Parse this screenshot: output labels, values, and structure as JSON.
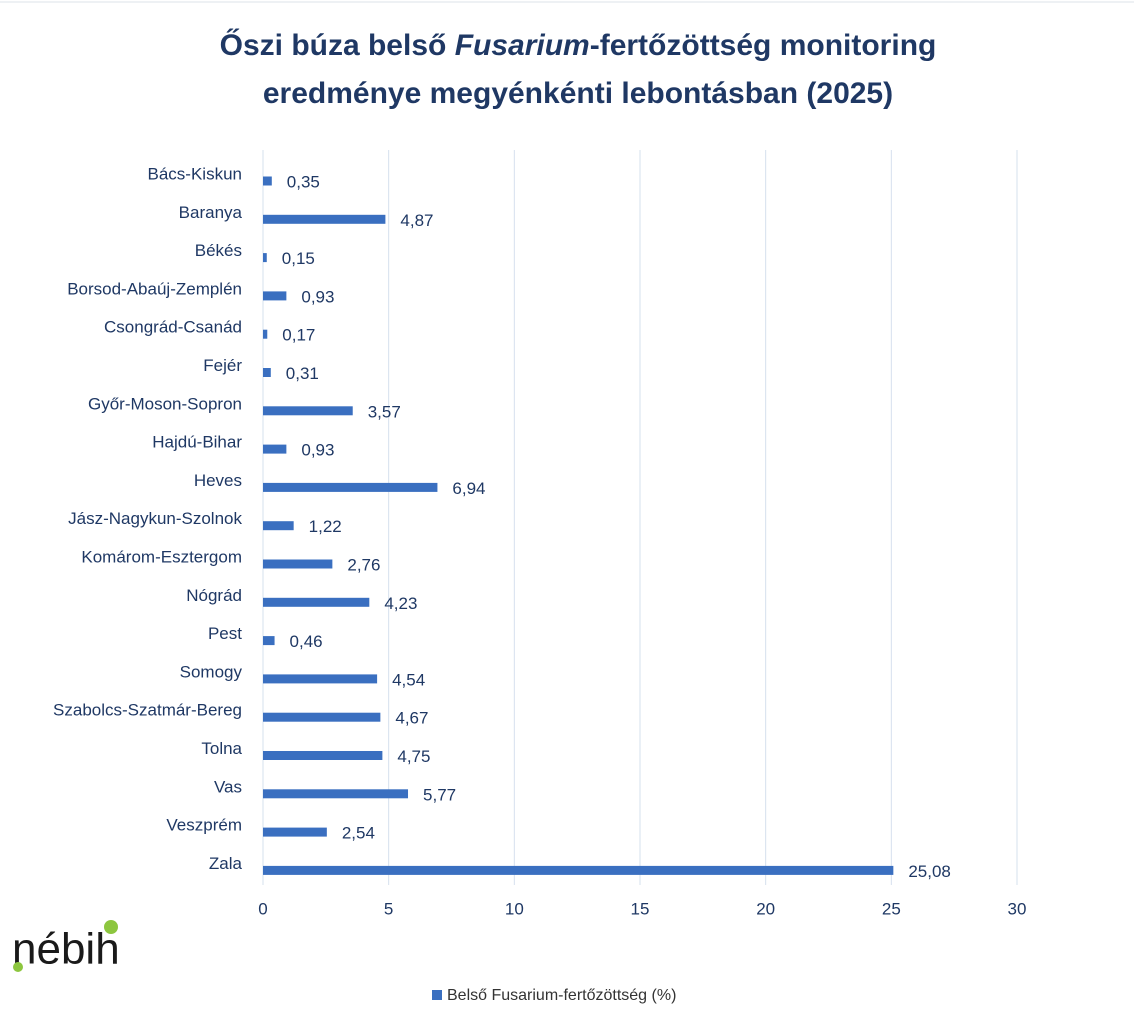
{
  "chart_data": {
    "type": "bar",
    "orientation": "horizontal",
    "title": [
      "Őszi búza belső ",
      "Fusarium",
      "-fertőzöttség monitoring",
      "eredménye megyénkénti lebontásban (2025)"
    ],
    "categories": [
      "Bács-Kiskun",
      "Baranya",
      "Békés",
      "Borsod-Abaúj-Zemplén",
      "Csongrád-Csanád",
      "Fejér",
      "Győr-Moson-Sopron",
      "Hajdú-Bihar",
      "Heves",
      "Jász-Nagykun-Szolnok",
      "Komárom-Esztergom",
      "Nógrád",
      "Pest",
      "Somogy",
      "Szabolcs-Szatmár-Bereg",
      "Tolna",
      "Vas",
      "Veszprém",
      "Zala"
    ],
    "series": [
      {
        "name": "Belső Fusarium-fertőzöttség (%)",
        "color": "#3a6fc0",
        "values": [
          0.35,
          4.87,
          0.15,
          0.93,
          0.17,
          0.31,
          3.57,
          0.93,
          6.94,
          1.22,
          2.76,
          4.23,
          0.46,
          4.54,
          4.67,
          4.75,
          5.77,
          2.54,
          25.08
        ],
        "value_labels": [
          "0,35",
          "4,87",
          "0,15",
          "0,93",
          "0,17",
          "0,31",
          "3,57",
          "0,93",
          "6,94",
          "1,22",
          "2,76",
          "4,23",
          "0,46",
          "4,54",
          "4,67",
          "4,75",
          "5,77",
          "2,54",
          "25,08"
        ]
      }
    ],
    "xlim": [
      0,
      30
    ],
    "xticks": [
      0,
      5,
      10,
      15,
      20,
      25,
      30
    ],
    "grid": true,
    "legend": "bottom",
    "logo": "nébih"
  }
}
